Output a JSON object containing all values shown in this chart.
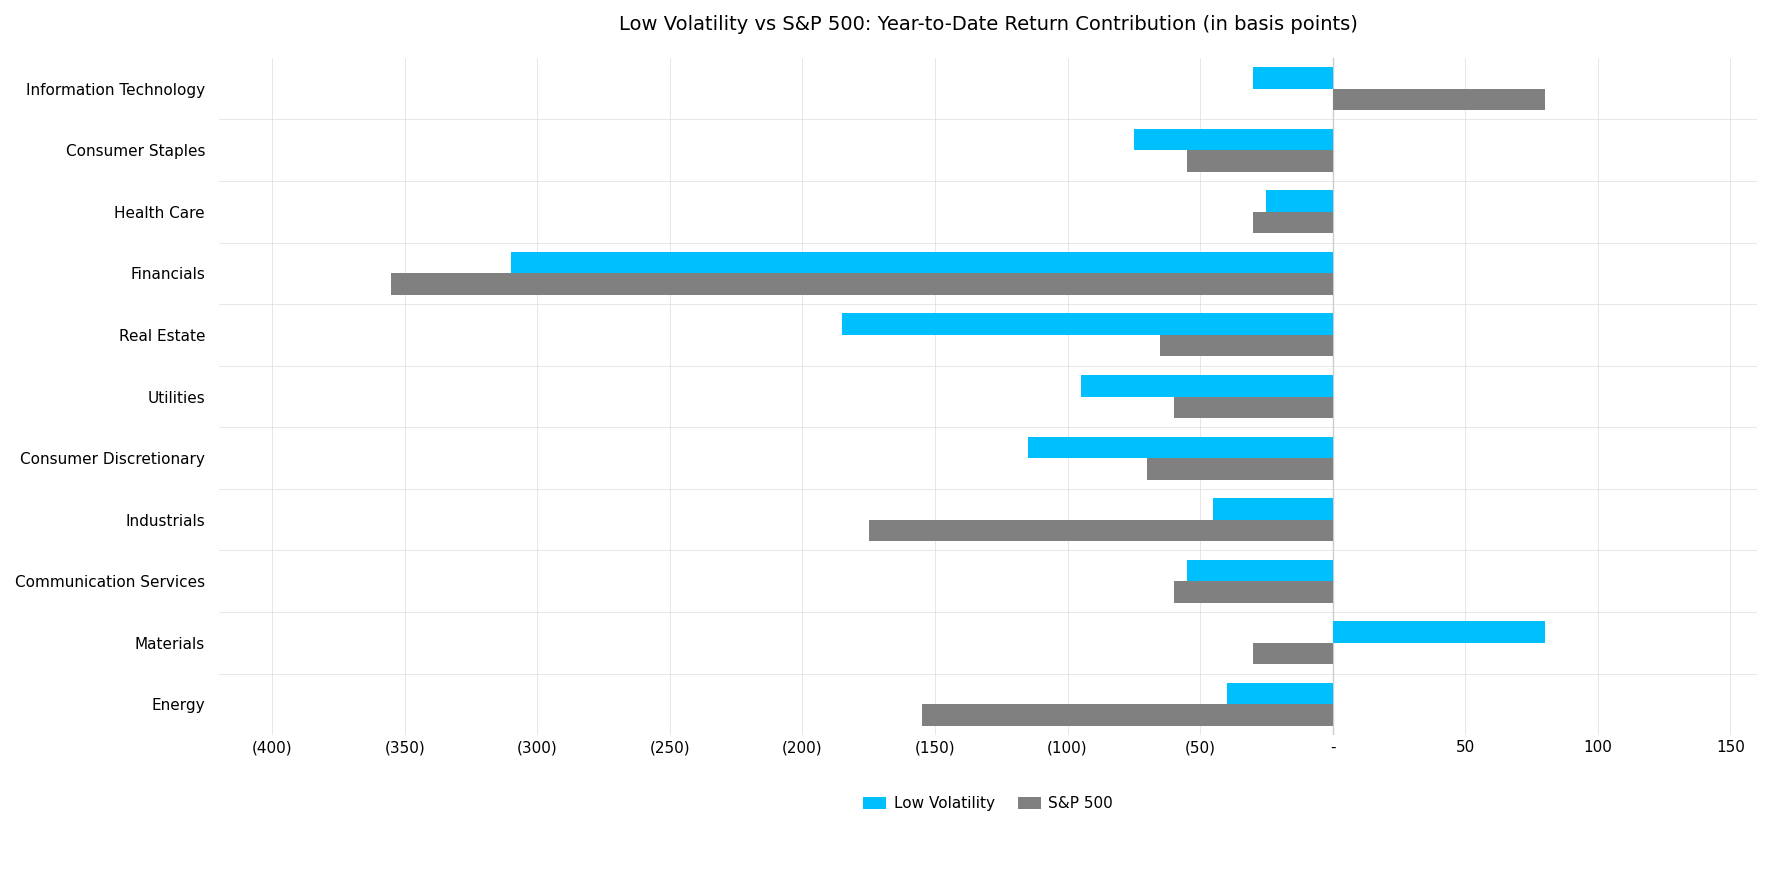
{
  "title": "Low Volatility vs S&P 500: Year-to-Date Return Contribution (in basis points)",
  "categories": [
    "Information Technology",
    "Consumer Staples",
    "Health Care",
    "Financials",
    "Real Estate",
    "Utilities",
    "Consumer Discretionary",
    "Industrials",
    "Communication Services",
    "Materials",
    "Energy"
  ],
  "low_vol": [
    -30,
    -75,
    -25,
    -310,
    -185,
    -95,
    -115,
    -45,
    -55,
    80,
    -40
  ],
  "sp500": [
    80,
    -55,
    -30,
    -355,
    -65,
    -60,
    -70,
    -175,
    -60,
    -30,
    -155
  ],
  "low_vol_color": "#00BFFF",
  "sp500_color": "#808080",
  "xlim": [
    -420,
    160
  ],
  "xticks": [
    -400,
    -350,
    -300,
    -250,
    -200,
    -150,
    -100,
    -50,
    0,
    50,
    100,
    150
  ],
  "xticklabels": [
    "(400)",
    "(350)",
    "(300)",
    "(250)",
    "(200)",
    "(150)",
    "(100)",
    "(50)",
    "-",
    "50",
    "100",
    "150"
  ],
  "legend_labels": [
    "Low Volatility",
    "S&P 500"
  ],
  "title_fontsize": 14,
  "tick_fontsize": 11,
  "legend_fontsize": 11,
  "bar_height": 0.35
}
